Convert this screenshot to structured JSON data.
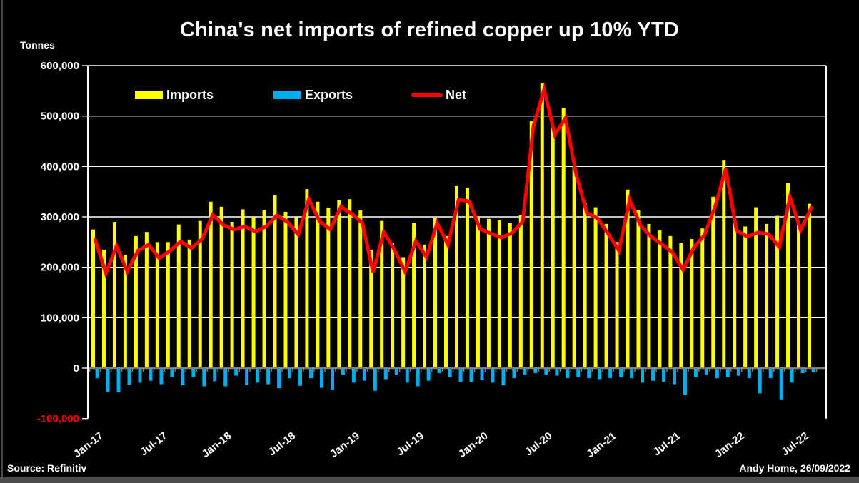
{
  "header": {
    "units_label": "Tonnes",
    "title": "China's net imports of refined copper up 10% YTD"
  },
  "legend": [
    {
      "label": "Imports",
      "color": "#FFFF00",
      "swatch": "box"
    },
    {
      "label": "Exports",
      "color": "#00AEEF",
      "swatch": "box"
    },
    {
      "label": "Net",
      "color": "#FF0000",
      "swatch": "line"
    }
  ],
  "footer": {
    "source": "Source: Refinitiv",
    "credit": "Andy Home, 26/09/2022"
  },
  "chart_data": {
    "type": "bar",
    "subtype": "grouped bars with overlaid line",
    "title": "China's net imports of refined copper up 10% YTD",
    "ylabel": "Tonnes",
    "ylim": [
      -100000,
      600000
    ],
    "ytick_step": 100000,
    "ytick_labels": [
      "600,000",
      "500,000",
      "400,000",
      "300,000",
      "200,000",
      "100,000",
      "0",
      "-100,000"
    ],
    "negative_tick_color": "#FF0000",
    "grid": "horizontal white gridlines, gray zero axis",
    "legend_position": "inside top-left",
    "xtick_labels": [
      "Jan-17",
      "Jul-17",
      "Jan-18",
      "Jul-18",
      "Jan-19",
      "Jul-19",
      "Jan-20",
      "Jul-20",
      "Jan-21",
      "Jul-21",
      "Jan-22",
      "Jul-22"
    ],
    "categories": [
      "Jan-17",
      "Feb-17",
      "Mar-17",
      "Apr-17",
      "May-17",
      "Jun-17",
      "Jul-17",
      "Aug-17",
      "Sep-17",
      "Oct-17",
      "Nov-17",
      "Dec-17",
      "Jan-18",
      "Feb-18",
      "Mar-18",
      "Apr-18",
      "May-18",
      "Jun-18",
      "Jul-18",
      "Aug-18",
      "Sep-18",
      "Oct-18",
      "Nov-18",
      "Dec-18",
      "Jan-19",
      "Feb-19",
      "Mar-19",
      "Apr-19",
      "May-19",
      "Jun-19",
      "Jul-19",
      "Aug-19",
      "Sep-19",
      "Oct-19",
      "Nov-19",
      "Dec-19",
      "Jan-20",
      "Feb-20",
      "Mar-20",
      "Apr-20",
      "May-20",
      "Jun-20",
      "Jul-20",
      "Aug-20",
      "Sep-20",
      "Oct-20",
      "Nov-20",
      "Dec-20",
      "Jan-21",
      "Feb-21",
      "Mar-21",
      "Apr-21",
      "May-21",
      "Jun-21",
      "Jul-21",
      "Aug-21",
      "Sep-21",
      "Oct-21",
      "Nov-21",
      "Dec-21",
      "Jan-22",
      "Feb-22",
      "Mar-22",
      "Apr-22",
      "May-22",
      "Jun-22",
      "Jul-22",
      "Aug-22"
    ],
    "series": [
      {
        "name": "Imports",
        "type": "bar",
        "color": "#FFFF00",
        "values": [
          275000,
          235000,
          290000,
          225000,
          262000,
          270000,
          250000,
          250000,
          285000,
          255000,
          292000,
          330000,
          320000,
          290000,
          315000,
          300000,
          313000,
          343000,
          310000,
          300000,
          355000,
          330000,
          318000,
          333000,
          335000,
          313000,
          235000,
          292000,
          248000,
          220000,
          288000,
          245000,
          298000,
          262000,
          361000,
          358000,
          300000,
          296000,
          293000,
          288000,
          304000,
          490000,
          566000,
          478000,
          516000,
          401000,
          328000,
          319000,
          286000,
          250000,
          354000,
          313000,
          286000,
          273000,
          262000,
          248000,
          256000,
          277000,
          340000,
          413000,
          288000,
          281000,
          319000,
          286000,
          302000,
          368000,
          284000,
          326000
        ]
      },
      {
        "name": "Exports",
        "type": "bar",
        "color": "#00AEEF",
        "values": [
          -20000,
          -47000,
          -48000,
          -33000,
          -29000,
          -25000,
          -32000,
          -17000,
          -34000,
          -17000,
          -36000,
          -26000,
          -36000,
          -15000,
          -34000,
          -29000,
          -32000,
          -40000,
          -20000,
          -35000,
          -20000,
          -39000,
          -43000,
          -13000,
          -29000,
          -25000,
          -45000,
          -22000,
          -13000,
          -29000,
          -36000,
          -25000,
          -10000,
          -17000,
          -27000,
          -27000,
          -24000,
          -29000,
          -34000,
          -20000,
          -13000,
          -10000,
          -13000,
          -15000,
          -20000,
          -17000,
          -20000,
          -22000,
          -20000,
          -17000,
          -20000,
          -29000,
          -25000,
          -27000,
          -32000,
          -53000,
          -17000,
          -13000,
          -20000,
          -17000,
          -15000,
          -20000,
          -50000,
          -20000,
          -62000,
          -29000,
          -10000,
          -8000
        ]
      },
      {
        "name": "Net",
        "type": "line",
        "color": "#FF0000",
        "values": [
          255000,
          188000,
          242000,
          192000,
          233000,
          245000,
          218000,
          233000,
          251000,
          238000,
          256000,
          304000,
          284000,
          275000,
          281000,
          271000,
          281000,
          303000,
          290000,
          265000,
          335000,
          291000,
          275000,
          320000,
          306000,
          288000,
          190000,
          270000,
          235000,
          191000,
          252000,
          220000,
          288000,
          245000,
          334000,
          331000,
          276000,
          267000,
          259000,
          268000,
          291000,
          480000,
          553000,
          463000,
          496000,
          384000,
          308000,
          297000,
          266000,
          233000,
          334000,
          284000,
          261000,
          246000,
          230000,
          195000,
          239000,
          264000,
          320000,
          396000,
          273000,
          261000,
          269000,
          266000,
          240000,
          339000,
          274000,
          318000
        ]
      }
    ]
  }
}
